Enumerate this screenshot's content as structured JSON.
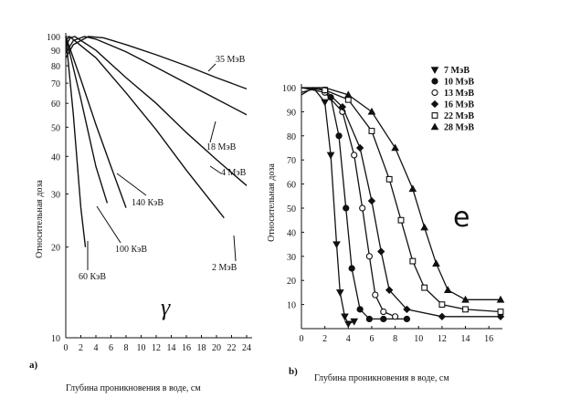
{
  "chart_data": [
    {
      "type": "line",
      "panel_label": "a)",
      "symbol": "γ",
      "xlabel": "Глубина проникновения в воде, см",
      "ylabel": "Относительная доза",
      "x_ticks": [
        0,
        2,
        4,
        6,
        8,
        10,
        12,
        14,
        16,
        18,
        20,
        22,
        24
      ],
      "y_ticks": [
        10,
        20,
        30,
        40,
        50,
        60,
        70,
        80,
        90,
        100
      ],
      "y_scale": "log",
      "xlim": [
        0,
        24
      ],
      "ylim": [
        10,
        100
      ],
      "series": [
        {
          "name": "35 МэВ",
          "x": [
            0,
            1,
            3,
            5,
            8,
            12,
            16,
            20,
            24
          ],
          "y": [
            85,
            94,
            100,
            99,
            94,
            87,
            80,
            73,
            67
          ]
        },
        {
          "name": "18 МэВ",
          "x": [
            0,
            1,
            2.5,
            4,
            8,
            12,
            16,
            20,
            24
          ],
          "y": [
            88,
            97,
            100,
            98,
            89,
            79,
            70,
            62,
            55
          ]
        },
        {
          "name": "4 МэВ",
          "x": [
            0,
            0.6,
            1.2,
            4,
            8,
            12,
            16,
            20,
            24
          ],
          "y": [
            93,
            99,
            100,
            90,
            73,
            60,
            48,
            39,
            32
          ]
        },
        {
          "name": "2 МэВ",
          "x": [
            0,
            0.5,
            4,
            8,
            12,
            16,
            21
          ],
          "y": [
            97,
            100,
            85,
            65,
            49,
            36,
            25
          ]
        },
        {
          "name": "140 КэВ",
          "x": [
            0,
            2,
            4,
            6,
            8
          ],
          "y": [
            100,
            72,
            51,
            37,
            27
          ]
        },
        {
          "name": "100 КэВ",
          "x": [
            0,
            2,
            4,
            5.5
          ],
          "y": [
            100,
            62,
            37,
            28
          ]
        },
        {
          "name": "60 КэВ",
          "x": [
            0,
            1,
            2,
            2.6
          ],
          "y": [
            100,
            55,
            27,
            20
          ]
        }
      ]
    },
    {
      "type": "line",
      "panel_label": "b)",
      "symbol": "e",
      "xlabel": "Глубина проникновения в воде, см",
      "ylabel": "Относительная доза",
      "x_ticks": [
        0,
        2,
        4,
        6,
        8,
        10,
        12,
        14,
        16
      ],
      "y_ticks": [
        10,
        20,
        30,
        40,
        50,
        60,
        70,
        80,
        90,
        100
      ],
      "xlim": [
        0,
        17
      ],
      "ylim": [
        0,
        100
      ],
      "legend_position": "top-right",
      "series": [
        {
          "name": "7 МэВ",
          "marker": "triangle-down",
          "x": [
            0,
            1,
            2,
            2.5,
            3,
            3.3,
            3.7,
            4,
            4.5
          ],
          "y": [
            97,
            100,
            94,
            72,
            35,
            15,
            5,
            2,
            3
          ]
        },
        {
          "name": "10 МэВ",
          "marker": "circle",
          "x": [
            0,
            1.5,
            2.5,
            3.2,
            3.8,
            4.3,
            5,
            5.8,
            7,
            9
          ],
          "y": [
            98,
            100,
            96,
            80,
            50,
            25,
            8,
            4,
            4,
            4
          ]
        },
        {
          "name": "13 МэВ",
          "marker": "open-circle",
          "x": [
            0,
            2,
            3.5,
            4.5,
            5.2,
            5.8,
            6.3,
            7,
            8
          ],
          "y": [
            100,
            98,
            90,
            72,
            50,
            30,
            14,
            7,
            5
          ]
        },
        {
          "name": "16 МэВ",
          "marker": "diamond",
          "x": [
            0,
            2,
            3.5,
            5,
            6,
            6.8,
            7.5,
            9,
            12,
            17
          ],
          "y": [
            100,
            99,
            92,
            75,
            53,
            32,
            16,
            8,
            5,
            5
          ]
        },
        {
          "name": "22 МэВ",
          "marker": "open-square",
          "x": [
            0,
            2,
            4,
            6,
            7.5,
            8.5,
            9.5,
            10.5,
            12,
            14,
            17
          ],
          "y": [
            100,
            99,
            95,
            82,
            62,
            45,
            28,
            17,
            10,
            8,
            7
          ]
        },
        {
          "name": "28 МэВ",
          "marker": "triangle-up",
          "x": [
            0,
            2,
            4,
            6,
            8,
            9.5,
            10.5,
            11.5,
            12.5,
            14,
            17
          ],
          "y": [
            100,
            100,
            97,
            90,
            75,
            58,
            42,
            27,
            16,
            12,
            12
          ]
        }
      ]
    }
  ]
}
